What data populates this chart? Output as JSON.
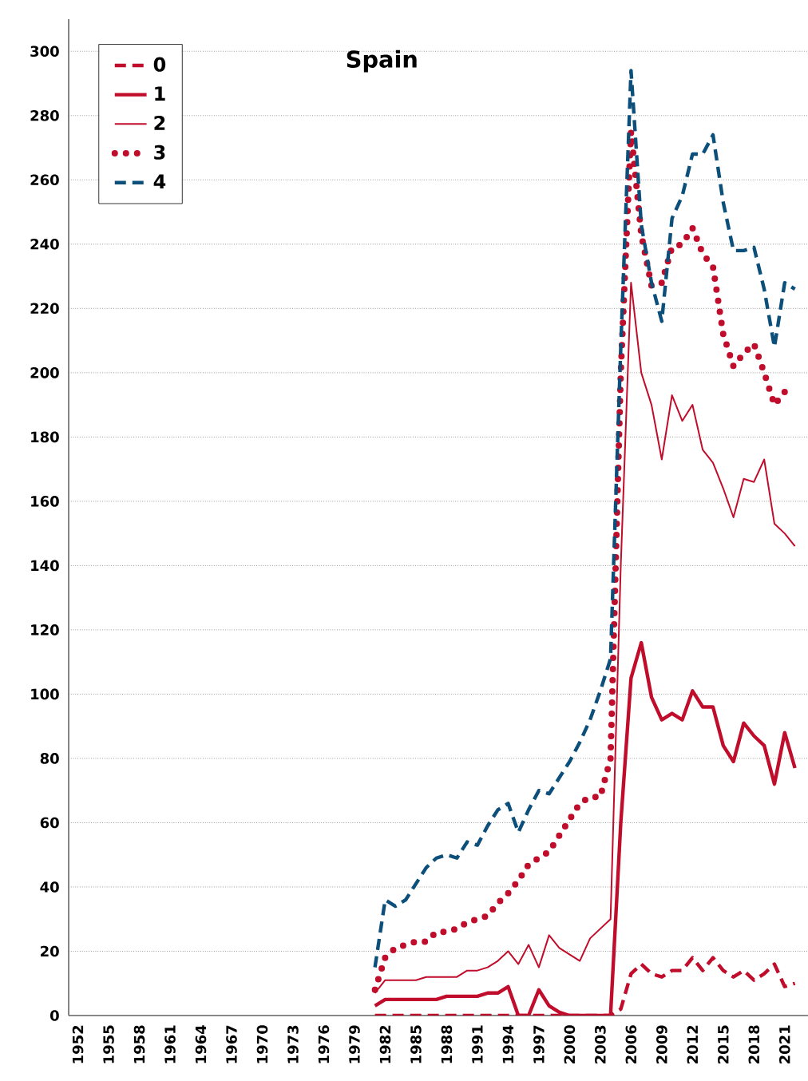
{
  "chart_data": {
    "type": "line",
    "title": "Spain",
    "x": [
      1981,
      1982,
      1983,
      1984,
      1985,
      1986,
      1987,
      1988,
      1989,
      1990,
      1991,
      1992,
      1993,
      1994,
      1995,
      1996,
      1997,
      1998,
      1999,
      2000,
      2001,
      2002,
      2003,
      2004,
      2005,
      2006,
      2007,
      2008,
      2009,
      2010,
      2011,
      2012,
      2013,
      2014,
      2015,
      2016,
      2017,
      2018,
      2019,
      2020,
      2021,
      2022
    ],
    "series": [
      {
        "name": "0",
        "color": "#c00d2b",
        "line_style": "dashed",
        "values": [
          0,
          0,
          0,
          0,
          0,
          0,
          0,
          0,
          0,
          0,
          0,
          0,
          0,
          0,
          0,
          0,
          0,
          0,
          0,
          0,
          0,
          0,
          0,
          0,
          2,
          13,
          16,
          13,
          12,
          14,
          14,
          18,
          14,
          18,
          14,
          12,
          14,
          11,
          13,
          16,
          9,
          10
        ]
      },
      {
        "name": "1",
        "color": "#c00d2b",
        "line_style": "solid",
        "values": [
          3,
          5,
          5,
          5,
          5,
          5,
          5,
          6,
          6,
          6,
          6,
          7,
          7,
          9,
          0,
          0,
          8,
          3,
          1,
          0,
          0,
          0,
          0,
          0,
          60,
          105,
          116,
          99,
          92,
          94,
          92,
          101,
          96,
          96,
          84,
          79,
          91,
          87,
          84,
          72,
          88,
          77
        ]
      },
      {
        "name": "2",
        "color": "#c00d2b",
        "line_style": "solid",
        "values": [
          7,
          11,
          11,
          11,
          11,
          12,
          12,
          12,
          12,
          14,
          14,
          15,
          17,
          20,
          16,
          22,
          15,
          25,
          21,
          19,
          17,
          24,
          27,
          30,
          140,
          228,
          200,
          190,
          173,
          193,
          185,
          190,
          176,
          172,
          164,
          155,
          167,
          166,
          173,
          153,
          150,
          146
        ]
      },
      {
        "name": "3",
        "color": "#c00d2b",
        "line_style": "dotted",
        "values": [
          8,
          18,
          21,
          22,
          23,
          23,
          26,
          26,
          27,
          29,
          30,
          31,
          35,
          38,
          42,
          47,
          49,
          51,
          56,
          61,
          66,
          68,
          68,
          80,
          200,
          275,
          243,
          227,
          228,
          239,
          240,
          245,
          237,
          233,
          212,
          202,
          206,
          209,
          200,
          190,
          194,
          193
        ]
      },
      {
        "name": "4",
        "color": "#0c4f7a",
        "line_style": "dashed",
        "values": [
          15,
          36,
          34,
          36,
          41,
          46,
          49,
          50,
          49,
          54,
          53,
          59,
          64,
          66,
          57,
          64,
          70,
          69,
          74,
          79,
          85,
          92,
          101,
          111,
          208,
          294,
          246,
          228,
          216,
          248,
          255,
          268,
          268,
          274,
          253,
          238,
          238,
          239,
          226,
          208,
          228,
          226
        ]
      }
    ],
    "xlim": [
      1951.1,
      2023.9
    ],
    "xticks": [
      1952,
      1955,
      1958,
      1961,
      1964,
      1967,
      1970,
      1973,
      1976,
      1979,
      1982,
      1985,
      1988,
      1991,
      1994,
      1997,
      2000,
      2003,
      2006,
      2009,
      2012,
      2015,
      2018,
      2021
    ],
    "ylim": [
      0,
      310
    ],
    "yticks": [
      0,
      20,
      40,
      60,
      80,
      100,
      120,
      140,
      160,
      180,
      200,
      220,
      240,
      260,
      280,
      300
    ],
    "grid": "y",
    "legend": "top left",
    "marker": "none"
  }
}
